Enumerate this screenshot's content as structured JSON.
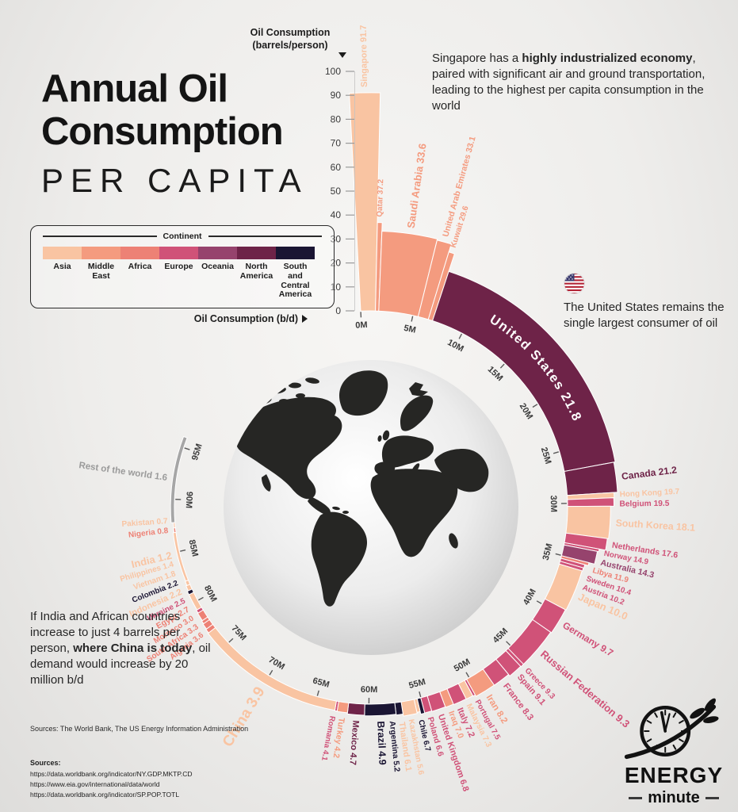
{
  "title": {
    "line1": "Annual Oil",
    "line2": "Consumption",
    "line3": "PER CAPITA"
  },
  "legend": {
    "title": "Continent",
    "items": [
      {
        "label": "Asia",
        "color": "#F9C4A2"
      },
      {
        "label": "Middle East",
        "color": "#F49B7F"
      },
      {
        "label": "Africa",
        "color": "#ED8175"
      },
      {
        "label": "Europe",
        "color": "#D05278"
      },
      {
        "label": "Oceania",
        "color": "#96436D"
      },
      {
        "label": "North America",
        "color": "#6E2348"
      },
      {
        "label": "South and Central America",
        "color": "#1A1533"
      }
    ]
  },
  "notes": {
    "singapore": {
      "pre": "Singapore has a ",
      "bold": "highly industrialized economy",
      "post": ", paired with significant air and ground transportation, leading to the highest per capita consumption in the world"
    },
    "us": {
      "text": "The United States remains the single largest consumer of oil"
    },
    "india": {
      "pre": "If India and African countries increase to just 4 barrels per person, ",
      "bold": "where China is today",
      "post": ", oil demand would increase by 20 million b/d"
    }
  },
  "sources_inline": "Sources: The World Bank, The US Energy Information Administration",
  "sources": {
    "heading": "Sources:",
    "urls": [
      "https://data.worldbank.org/indicator/NY.GDP.MKTP.CD",
      "https://www.eia.gov/international/data/world",
      "https://data.worldbank.org/indicator/SP.POP.TOTL"
    ]
  },
  "logo": {
    "line1": "ENERGY",
    "line2": "minute"
  },
  "chart_data": {
    "type": "radial-bar",
    "title": "Annual Oil Consumption Per Capita",
    "radial_axis": {
      "label": "Oil Consumption (barrels/person)",
      "min": 0,
      "max": 100,
      "tick_step": 10
    },
    "angular_axis": {
      "label": "Oil Consumption (b/d)",
      "unit": "M",
      "min": 0,
      "max": 95,
      "tick_step": 5
    },
    "continent_colors": {
      "Asia": "#F9C4A2",
      "Middle East": "#F49B7F",
      "Africa": "#ED8175",
      "Europe": "#D05278",
      "Oceania": "#96436D",
      "North America": "#6E2348",
      "South and Central America": "#1A1533",
      "Other": "#A6A6A6"
    },
    "label_text_colors": {
      "Other": "#9a9a9a"
    },
    "segments": [
      {
        "name": "Singapore",
        "per_capita": "91.7",
        "bpd_est": 1.4,
        "continent": "Asia"
      },
      {
        "name": "Qatar",
        "per_capita": "37.2",
        "bpd_est": 0.32,
        "continent": "Middle East"
      },
      {
        "name": "Saudi Arabia",
        "per_capita": "33.6",
        "bpd_est": 3.8,
        "continent": "Middle East"
      },
      {
        "name": "United Arab Emirates",
        "per_capita": "33.1",
        "bpd_est": 1.0,
        "continent": "Middle East"
      },
      {
        "name": "Kuwait",
        "per_capita": "29.6",
        "bpd_est": 0.42,
        "continent": "Middle East"
      },
      {
        "name": "United States",
        "per_capita": "21.8",
        "bpd_est": 20.0,
        "continent": "North America",
        "label_inside": true
      },
      {
        "name": "Canada",
        "per_capita": "21.2",
        "bpd_est": 2.3,
        "continent": "North America"
      },
      {
        "name": "Hong Kong",
        "per_capita": "19.7",
        "bpd_est": 0.4,
        "continent": "Asia"
      },
      {
        "name": "Belgium",
        "per_capita": "19.5",
        "bpd_est": 0.65,
        "continent": "Europe"
      },
      {
        "name": "South Korea",
        "per_capita": "18.1",
        "bpd_est": 2.55,
        "continent": "Asia"
      },
      {
        "name": "Netherlands",
        "per_capita": "17.6",
        "bpd_est": 0.92,
        "continent": "Europe"
      },
      {
        "name": "Norway",
        "per_capita": "14.9",
        "bpd_est": 0.22,
        "continent": "Europe"
      },
      {
        "name": "Australia",
        "per_capita": "14.3",
        "bpd_est": 1.05,
        "continent": "Oceania"
      },
      {
        "name": "Libya",
        "per_capita": "11.9",
        "bpd_est": 0.25,
        "continent": "Africa"
      },
      {
        "name": "Sweden",
        "per_capita": "10.4",
        "bpd_est": 0.3,
        "continent": "Europe"
      },
      {
        "name": "Austria",
        "per_capita": "10.2",
        "bpd_est": 0.27,
        "continent": "Europe"
      },
      {
        "name": "Japan",
        "per_capita": "10.0",
        "bpd_est": 3.6,
        "continent": "Asia"
      },
      {
        "name": "Germany",
        "per_capita": "9.7",
        "bpd_est": 2.3,
        "continent": "Europe"
      },
      {
        "name": "Russian Federation",
        "per_capita": "9.3",
        "bpd_est": 3.6,
        "continent": "Europe"
      },
      {
        "name": "Greece",
        "per_capita": "9.3",
        "bpd_est": 0.3,
        "continent": "Europe"
      },
      {
        "name": "Spain",
        "per_capita": "9.1",
        "bpd_est": 1.25,
        "continent": "Europe"
      },
      {
        "name": "France",
        "per_capita": "8.3",
        "bpd_est": 1.55,
        "continent": "Europe"
      },
      {
        "name": "Iran",
        "per_capita": "8.2",
        "bpd_est": 1.85,
        "continent": "Middle East"
      },
      {
        "name": "Portugal",
        "per_capita": "7.5",
        "bpd_est": 0.22,
        "continent": "Europe"
      },
      {
        "name": "Malaysia",
        "per_capita": "7.3",
        "bpd_est": 0.65,
        "continent": "Asia"
      },
      {
        "name": "Italy",
        "per_capita": "7.2",
        "bpd_est": 1.2,
        "continent": "Europe"
      },
      {
        "name": "Iraq",
        "per_capita": "7.0",
        "bpd_est": 0.75,
        "continent": "Middle East"
      },
      {
        "name": "United Kingdom",
        "per_capita": "6.8",
        "bpd_est": 1.25,
        "continent": "Europe"
      },
      {
        "name": "Poland",
        "per_capita": "6.6",
        "bpd_est": 0.65,
        "continent": "Europe"
      },
      {
        "name": "Chile",
        "per_capita": "6.7",
        "bpd_est": 0.35,
        "continent": "South and Central America"
      },
      {
        "name": "Kazakhstan",
        "per_capita": "5.6",
        "bpd_est": 0.3,
        "continent": "Asia"
      },
      {
        "name": "Thailand",
        "per_capita": "6.1",
        "bpd_est": 1.25,
        "continent": "Asia"
      },
      {
        "name": "Argentina",
        "per_capita": "5.2",
        "bpd_est": 0.62,
        "continent": "South and Central America"
      },
      {
        "name": "Brazil",
        "per_capita": "4.9",
        "bpd_est": 2.85,
        "continent": "South and Central America"
      },
      {
        "name": "Mexico",
        "per_capita": "4.7",
        "bpd_est": 1.55,
        "continent": "North America"
      },
      {
        "name": "Turkey",
        "per_capita": "4.2",
        "bpd_est": 0.95,
        "continent": "Middle East"
      },
      {
        "name": "Romania",
        "per_capita": "4.1",
        "bpd_est": 0.22,
        "continent": "Europe"
      },
      {
        "name": "China",
        "per_capita": "3.9",
        "bpd_est": 13.8,
        "continent": "Asia",
        "big_label": true
      },
      {
        "name": "Algeria",
        "per_capita": "3.6",
        "bpd_est": 0.4,
        "continent": "Africa"
      },
      {
        "name": "South Africa",
        "per_capita": "3.3",
        "bpd_est": 0.55,
        "continent": "Africa"
      },
      {
        "name": "Morocco",
        "per_capita": "3.0",
        "bpd_est": 0.3,
        "continent": "Africa"
      },
      {
        "name": "Egypt",
        "per_capita": "2.7",
        "bpd_est": 0.8,
        "continent": "Africa"
      },
      {
        "name": "Ukraine",
        "per_capita": "2.5",
        "bpd_est": 0.3,
        "continent": "Europe"
      },
      {
        "name": "Indonesia",
        "per_capita": "2.2",
        "bpd_est": 1.6,
        "continent": "Asia"
      },
      {
        "name": "Colombia",
        "per_capita": "2.2",
        "bpd_est": 0.35,
        "continent": "South and Central America"
      },
      {
        "name": "Vietnam",
        "per_capita": "1.8",
        "bpd_est": 0.5,
        "continent": "Asia"
      },
      {
        "name": "Philippines",
        "per_capita": "1.4",
        "bpd_est": 0.43,
        "continent": "Asia"
      },
      {
        "name": "India",
        "per_capita": "1.2",
        "bpd_est": 4.7,
        "continent": "Asia"
      },
      {
        "name": "Nigeria",
        "per_capita": "0.8",
        "bpd_est": 0.45,
        "continent": "Africa"
      },
      {
        "name": "Pakistan",
        "per_capita": "0.7",
        "bpd_est": 0.5,
        "continent": "Asia"
      },
      {
        "name": "Rest of the world",
        "per_capita": "1.6",
        "bpd_est": 8.2,
        "continent": "Other"
      }
    ]
  }
}
